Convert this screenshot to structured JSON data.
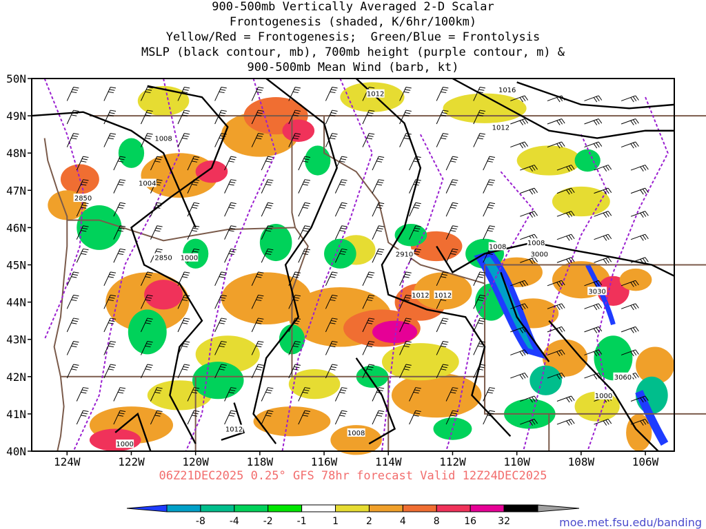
{
  "title": {
    "lines": [
      "900-500mb Vertically Averaged 2-D Scalar",
      "Frontogenesis (shaded, K/6hr/100km)",
      "Yellow/Red = Frontogenesis;  Green/Blue = Frontolysis",
      "MSLP (black contour, mb), 700mb height (purple contour, m) &",
      "900-500mb Mean Wind (barb, kt)"
    ]
  },
  "footer": "06Z21DEC2025 0.25° GFS 78hr forecast Valid 12Z24DEC2025",
  "credit": "moe.met.fsu.edu/banding",
  "map": {
    "lat_labels": [
      "50N",
      "49N",
      "48N",
      "47N",
      "46N",
      "45N",
      "44N",
      "43N",
      "42N",
      "41N",
      "40N"
    ],
    "lon_labels": [
      "124W",
      "122W",
      "120W",
      "118W",
      "116W",
      "114W",
      "112W",
      "110W",
      "108W",
      "106W"
    ],
    "mslp_labels": [
      "1012",
      "1016",
      "1008",
      "1012",
      "1004",
      "1008",
      "1000",
      "1012",
      "1012",
      "1008",
      "1000",
      "1012",
      "1008",
      "1000"
    ],
    "height_labels": [
      "2850",
      "2850",
      "2910",
      "3000",
      "3030",
      "3060"
    ],
    "colors": {
      "mslp": "#000000",
      "height": "#9a1fd0",
      "borders": "#7a5a4a"
    }
  },
  "colorbar": {
    "ticks": [
      "-8",
      "-4",
      "-2",
      "-1",
      "1",
      "2",
      "4",
      "8",
      "16",
      "32"
    ],
    "colors": [
      "#1e3cff",
      "#00a0c8",
      "#00be8c",
      "#00d25a",
      "#00e600",
      "#ffffff",
      "#e6dc32",
      "#f0a02a",
      "#f06e32",
      "#f0325a",
      "#e60096",
      "#000000",
      "#a0a0a0"
    ]
  }
}
